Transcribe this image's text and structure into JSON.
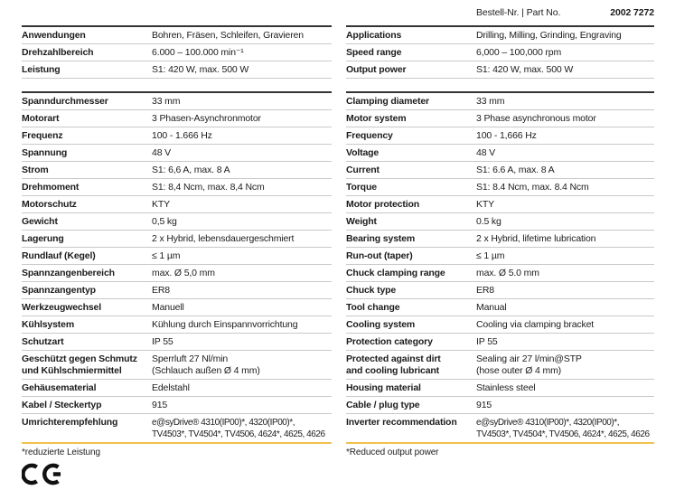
{
  "colors": {
    "text": "#1c1c1c",
    "dark_rule": "#333333",
    "light_rule": "#c9c9c9",
    "accent_rule": "#f2c04c",
    "bg": "#ffffff"
  },
  "order_header": {
    "label": "Bestell-Nr. | Part No.",
    "part_no": "2002 7272"
  },
  "tables": [
    {
      "id": "de",
      "language": "German",
      "footnote": "*reduzierte Leistung",
      "sections": [
        {
          "rows": [
            {
              "label": "Anwendungen",
              "value": "Bohren, Fräsen, Schleifen, Gravieren"
            },
            {
              "label": "Drehzahlbereich",
              "value": "6.000 – 100.000 min⁻¹"
            },
            {
              "label": "Leistung",
              "value": "S1: 420 W, max. 500 W"
            }
          ]
        },
        {
          "rows": [
            {
              "label": "Spanndurchmesser",
              "value": "33 mm"
            },
            {
              "label": "Motorart",
              "value": "3 Phasen-Asynchronmotor"
            },
            {
              "label": "Frequenz",
              "value": "100 - 1.666 Hz"
            },
            {
              "label": "Spannung",
              "value": "48 V"
            },
            {
              "label": "Strom",
              "value": "S1: 6,6 A, max. 8 A"
            },
            {
              "label": "Drehmoment",
              "value": "S1: 8,4 Ncm, max. 8,4 Ncm"
            },
            {
              "label": "Motorschutz",
              "value": "KTY"
            },
            {
              "label": "Gewicht",
              "value": "0,5 kg"
            },
            {
              "label": "Lagerung",
              "value": "2 x Hybrid, lebensdauergeschmiert"
            },
            {
              "label": "Rundlauf (Kegel)",
              "value": "≤ 1 µm"
            },
            {
              "label": "Spannzangenbereich",
              "value": "max. Ø 5,0 mm"
            },
            {
              "label": "Spannzangentyp",
              "value": "ER8"
            },
            {
              "label": "Werkzeugwechsel",
              "value": "Manuell"
            },
            {
              "label": "Kühlsystem",
              "value": "Kühlung durch Einspannvorrichtung"
            },
            {
              "label": "Schutzart",
              "value": "IP 55"
            },
            {
              "label": "Geschützt gegen Schmutz\nund Kühlschmiermittel",
              "value": "Sperrluft 27 Nl/min\n(Schlauch außen Ø 4 mm)"
            },
            {
              "label": "Gehäusematerial",
              "value": "Edelstahl"
            },
            {
              "label": "Kabel / Steckertyp",
              "value": "915"
            },
            {
              "label": "Umrichterempfehlung",
              "value": "e@syDrive® 4310(IP00)*, 4320(IP00)*,\nTV4503*, TV4504*, TV4506, 4624*, 4625, 4626"
            }
          ]
        }
      ]
    },
    {
      "id": "en",
      "language": "English",
      "footnote": "*Reduced output power",
      "sections": [
        {
          "rows": [
            {
              "label": "Applications",
              "value": "Drilling, Milling, Grinding, Engraving"
            },
            {
              "label": "Speed range",
              "value": "6,000 – 100,000 rpm"
            },
            {
              "label": "Output power",
              "value": "S1: 420 W, max. 500 W"
            }
          ]
        },
        {
          "rows": [
            {
              "label": "Clamping diameter",
              "value": "33 mm"
            },
            {
              "label": "Motor system",
              "value": "3 Phase asynchronous motor"
            },
            {
              "label": "Frequency",
              "value": "100 - 1,666 Hz"
            },
            {
              "label": "Voltage",
              "value": "48 V"
            },
            {
              "label": "Current",
              "value": "S1: 6.6 A, max. 8 A"
            },
            {
              "label": "Torque",
              "value": "S1: 8.4 Ncm, max. 8.4 Ncm"
            },
            {
              "label": "Motor protection",
              "value": "KTY"
            },
            {
              "label": "Weight",
              "value": "0.5 kg"
            },
            {
              "label": "Bearing system",
              "value": "2 x Hybrid, lifetime lubrication"
            },
            {
              "label": "Run-out (taper)",
              "value": "≤ 1 µm"
            },
            {
              "label": "Chuck clamping range",
              "value": "max. Ø 5.0 mm"
            },
            {
              "label": "Chuck type",
              "value": "ER8"
            },
            {
              "label": "Tool change",
              "value": "Manual"
            },
            {
              "label": "Cooling system",
              "value": "Cooling via clamping bracket"
            },
            {
              "label": "Protection category",
              "value": "IP 55"
            },
            {
              "label": "Protected against dirt\nand cooling lubricant",
              "value": "Sealing air 27 l/min@STP\n(hose outer Ø 4 mm)"
            },
            {
              "label": "Housing material",
              "value": "Stainless steel"
            },
            {
              "label": "Cable / plug type",
              "value": "915"
            },
            {
              "label": "Inverter recommendation",
              "value": "e@syDrive® 4310(IP00)*, 4320(IP00)*,\nTV4503*, TV4504*, TV4506, 4624*, 4625, 4626"
            }
          ]
        }
      ]
    }
  ],
  "ce_mark": "CE"
}
